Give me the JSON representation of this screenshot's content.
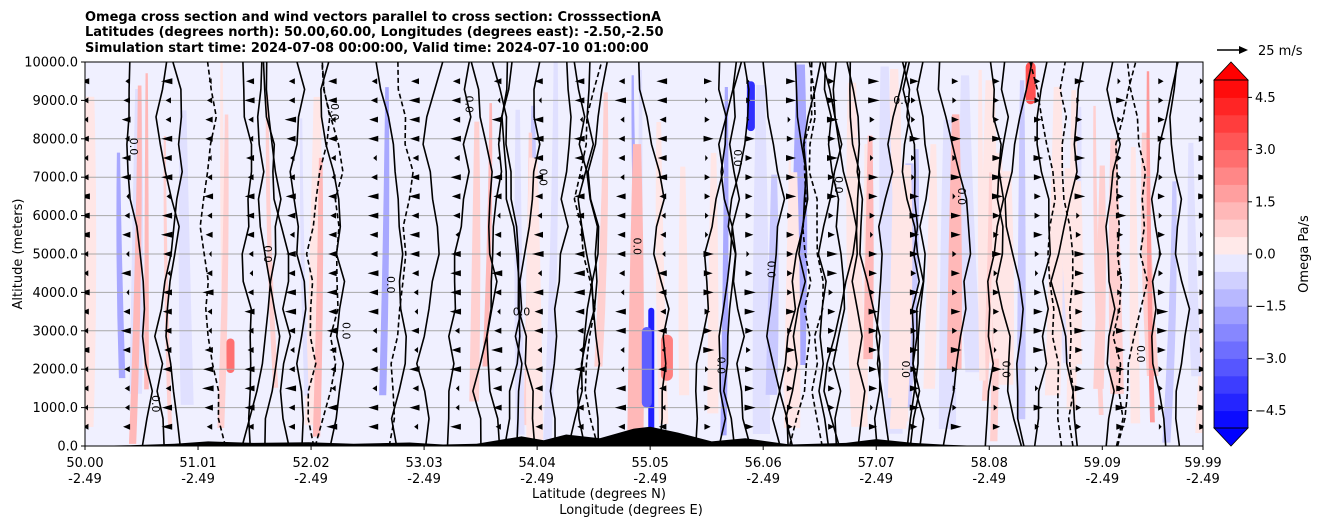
{
  "chart_data": {
    "type": "heatmap",
    "title_lines": [
      "Omega cross section and wind vectors parallel to cross section: CrosssectionA",
      "Latitudes (degrees north): 50.00,60.00, Longitudes (degrees east): -2.50,-2.50",
      "Simulation start time: 2024-07-08 00:00:00, Valid time: 2024-07-10 01:00:00"
    ],
    "ylabel": "Altitude (meters)",
    "xlabel_line1": "Latitude (degrees N)",
    "xlabel_line2": "Longitude (degrees E)",
    "ylim": [
      0,
      10000
    ],
    "y_ticks": [
      "0.0",
      "1000.0",
      "2000.0",
      "3000.0",
      "4000.0",
      "5000.0",
      "6000.0",
      "7000.0",
      "8000.0",
      "9000.0",
      "10000.0"
    ],
    "x_ticks": [
      {
        "lat": "50.00",
        "lon": "-2.49"
      },
      {
        "lat": "51.01",
        "lon": "-2.49"
      },
      {
        "lat": "52.02",
        "lon": "-2.49"
      },
      {
        "lat": "53.03",
        "lon": "-2.49"
      },
      {
        "lat": "54.04",
        "lon": "-2.49"
      },
      {
        "lat": "55.05",
        "lon": "-2.49"
      },
      {
        "lat": "56.06",
        "lon": "-2.49"
      },
      {
        "lat": "57.07",
        "lon": "-2.49"
      },
      {
        "lat": "58.08",
        "lon": "-2.49"
      },
      {
        "lat": "59.09",
        "lon": "-2.49"
      },
      {
        "lat": "59.99",
        "lon": "-2.49"
      }
    ],
    "grid": "horizontal",
    "colorbar": {
      "label": "Omega Pa/s",
      "range": [
        -5,
        5
      ],
      "ticks": [
        "4.5",
        "3.0",
        "1.5",
        "0.0",
        "−1.5",
        "−3.0",
        "−4.5"
      ],
      "tick_values": [
        4.5,
        3.0,
        1.5,
        0.0,
        -1.5,
        -3.0,
        -4.5
      ],
      "extend": "both",
      "colormap": "bwr"
    },
    "quiver_key": {
      "label": "25 m/s"
    },
    "contour_label": "0.0",
    "terrain": [
      {
        "lat": 50.0,
        "h": 0
      },
      {
        "lat": 50.4,
        "h": 20
      },
      {
        "lat": 50.8,
        "h": 60
      },
      {
        "lat": 51.1,
        "h": 120
      },
      {
        "lat": 51.5,
        "h": 80
      },
      {
        "lat": 52.0,
        "h": 100
      },
      {
        "lat": 52.4,
        "h": 60
      },
      {
        "lat": 52.9,
        "h": 90
      },
      {
        "lat": 53.2,
        "h": 40
      },
      {
        "lat": 53.5,
        "h": 60
      },
      {
        "lat": 53.9,
        "h": 250
      },
      {
        "lat": 54.1,
        "h": 150
      },
      {
        "lat": 54.3,
        "h": 300
      },
      {
        "lat": 54.6,
        "h": 200
      },
      {
        "lat": 54.9,
        "h": 450
      },
      {
        "lat": 55.05,
        "h": 500
      },
      {
        "lat": 55.3,
        "h": 350
      },
      {
        "lat": 55.6,
        "h": 120
      },
      {
        "lat": 55.9,
        "h": 200
      },
      {
        "lat": 56.3,
        "h": 40
      },
      {
        "lat": 56.8,
        "h": 80
      },
      {
        "lat": 57.07,
        "h": 180
      },
      {
        "lat": 57.4,
        "h": 80
      },
      {
        "lat": 57.7,
        "h": 30
      },
      {
        "lat": 58.0,
        "h": 0
      },
      {
        "lat": 59.99,
        "h": 0
      }
    ]
  }
}
